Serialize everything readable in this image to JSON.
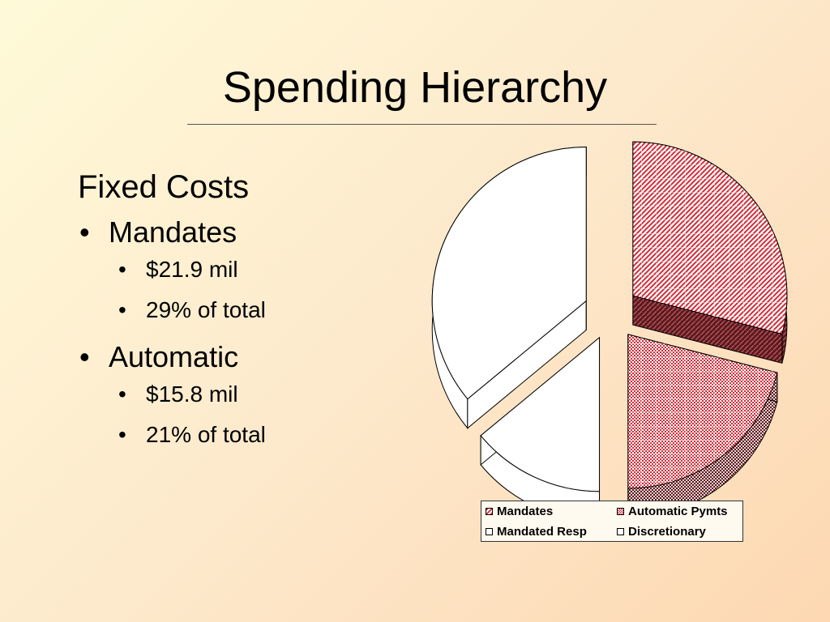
{
  "slide": {
    "title": "Spending Hierarchy",
    "heading": "Fixed Costs",
    "sections": [
      {
        "label": "Mandates",
        "details": [
          "$21.9 mil",
          "29% of total"
        ]
      },
      {
        "label": "Automatic",
        "details": [
          "$15.8 mil",
          "21% of total"
        ]
      }
    ]
  },
  "chart_data": {
    "type": "pie",
    "title": "",
    "exploded": true,
    "three_d": true,
    "slices": [
      {
        "name": "Mandates",
        "value": 29,
        "fill": "diagonal-hatch",
        "color": "#d42a36"
      },
      {
        "name": "Automatic Pymts",
        "value": 21,
        "fill": "checkered",
        "color": "#d42a36"
      },
      {
        "name": "Mandated Resp",
        "value": 14,
        "fill": "none",
        "color": "#ffffff"
      },
      {
        "name": "Discretionary",
        "value": 36,
        "fill": "none",
        "color": "#ffffff"
      }
    ],
    "legend": {
      "position": "bottom",
      "entries": [
        "Mandates",
        "Automatic Pymts",
        "Mandated Resp",
        "Discretionary"
      ]
    }
  }
}
